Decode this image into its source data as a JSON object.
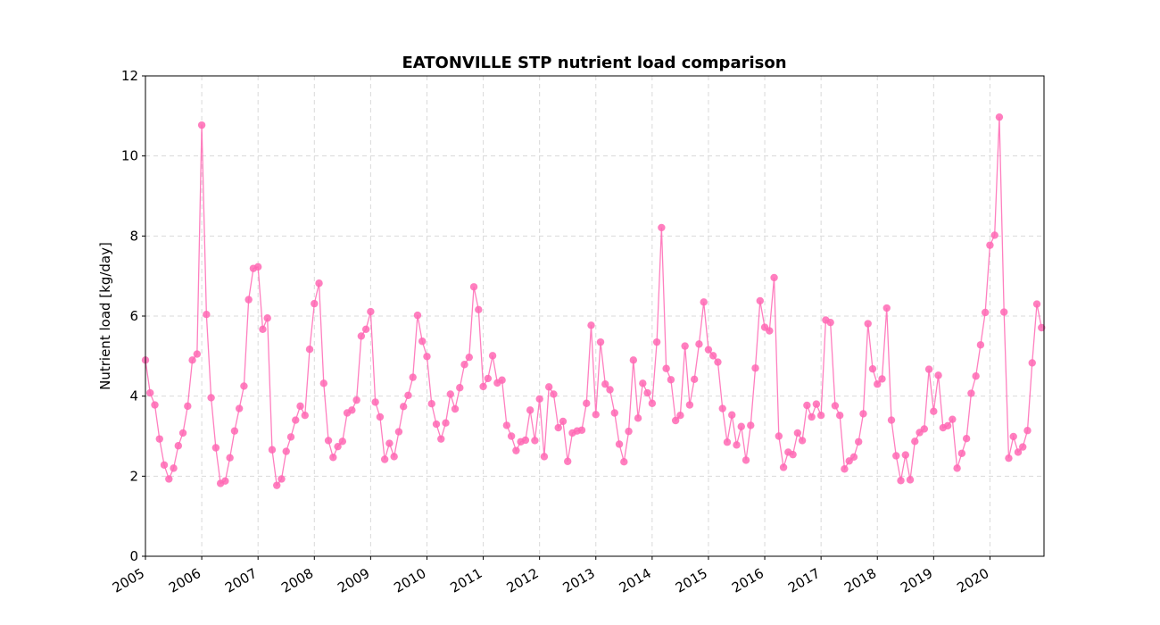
{
  "chart_data": {
    "type": "line",
    "title": "EATONVILLE STP nutrient load comparison",
    "xlabel": "",
    "ylabel": "Nutrient load [kg/day]",
    "xlim": [
      2005.0,
      2020.96
    ],
    "ylim": [
      0,
      12
    ],
    "yticks": [
      0,
      2,
      4,
      6,
      8,
      10,
      12
    ],
    "xticks": [
      "2005",
      "2006",
      "2007",
      "2008",
      "2009",
      "2010",
      "2011",
      "2012",
      "2013",
      "2014",
      "2015",
      "2016",
      "2017",
      "2018",
      "2019",
      "2020"
    ],
    "grid": true,
    "marker": "circle",
    "color": "#ff69b4",
    "series": [
      {
        "x_start": "2005-01",
        "x_step": "month",
        "values": [
          4.9,
          4.08,
          3.78,
          2.93,
          2.28,
          1.93,
          2.2,
          2.76,
          3.08,
          3.75,
          4.9,
          5.05,
          10.77,
          6.04,
          3.96,
          2.71,
          1.82,
          1.88,
          2.46,
          3.13,
          3.69,
          4.25,
          6.41,
          7.19,
          7.23,
          5.67,
          5.95,
          2.66,
          1.77,
          1.93,
          2.62,
          2.98,
          3.4,
          3.75,
          3.52,
          5.17,
          6.31,
          6.82,
          4.32,
          2.89,
          2.47,
          2.74,
          2.87,
          3.58,
          3.65,
          3.9,
          5.5,
          5.67,
          6.11,
          3.85,
          3.48,
          2.42,
          2.82,
          2.49,
          3.11,
          3.74,
          4.02,
          4.47,
          6.02,
          5.37,
          4.99,
          3.81,
          3.3,
          2.93,
          3.33,
          4.05,
          3.68,
          4.21,
          4.79,
          4.97,
          6.73,
          6.16,
          4.24,
          4.44,
          5.01,
          4.33,
          4.4,
          3.27,
          3.0,
          2.64,
          2.86,
          2.9,
          3.65,
          2.89,
          3.93,
          2.49,
          4.23,
          4.05,
          3.21,
          3.37,
          2.37,
          3.08,
          3.13,
          3.15,
          3.82,
          5.77,
          3.54,
          5.35,
          4.3,
          4.16,
          3.58,
          2.8,
          2.36,
          3.12,
          4.9,
          3.45,
          4.32,
          4.08,
          3.82,
          5.35,
          8.21,
          4.69,
          4.41,
          3.39,
          3.52,
          5.25,
          3.78,
          4.42,
          5.3,
          6.35,
          5.16,
          5.01,
          4.85,
          3.69,
          2.85,
          3.53,
          2.78,
          3.24,
          2.4,
          3.27,
          4.7,
          6.38,
          5.72,
          5.63,
          6.96,
          3.0,
          2.22,
          2.6,
          2.54,
          3.08,
          2.89,
          3.77,
          3.48,
          3.8,
          3.52,
          5.9,
          5.84,
          3.76,
          3.52,
          2.18,
          2.38,
          2.48,
          2.86,
          3.56,
          5.81,
          4.68,
          4.3,
          4.43,
          6.2,
          3.4,
          2.51,
          1.89,
          2.53,
          1.91,
          2.87,
          3.09,
          3.18,
          4.67,
          3.62,
          4.52,
          3.21,
          3.26,
          3.42,
          2.2,
          2.57,
          2.94,
          4.07,
          4.5,
          5.28,
          6.09,
          7.77,
          8.02,
          10.97,
          6.1,
          2.45,
          2.99,
          2.6,
          2.73,
          3.14,
          4.83,
          6.3,
          5.71
        ]
      }
    ]
  }
}
